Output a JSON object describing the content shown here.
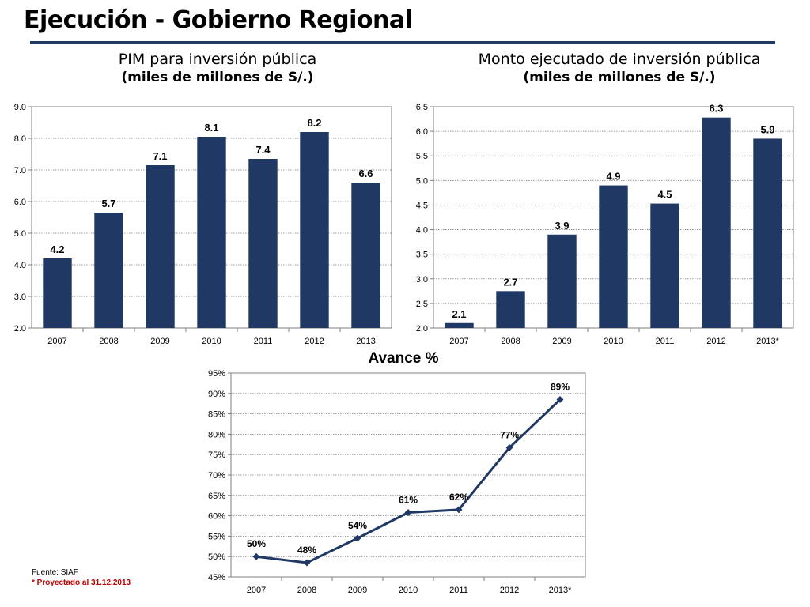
{
  "header": {
    "title": "Ejecución - Gobierno Regional"
  },
  "footer": {
    "source": "Fuente: SIAF",
    "projected_note": "* Proyectado al 31.12.2013"
  },
  "chart_data": [
    {
      "type": "bar",
      "title": "PIM para inversión pública",
      "subtitle": "(miles de millones de S/.)",
      "categories": [
        "2007",
        "2008",
        "2009",
        "2010",
        "2011",
        "2012",
        "2013"
      ],
      "values": [
        4.2,
        5.65,
        7.15,
        8.05,
        7.35,
        8.2,
        6.6
      ],
      "data_labels": [
        "4.2",
        "5.7",
        "7.1",
        "8.1",
        "7.4",
        "8.2",
        "6.6"
      ],
      "ylim": [
        2.0,
        9.0
      ],
      "yticks": [
        "2.0",
        "3.0",
        "4.0",
        "5.0",
        "6.0",
        "7.0",
        "8.0",
        "9.0"
      ],
      "grid": true,
      "bar_color": "#1f3864"
    },
    {
      "type": "bar",
      "title": "Monto ejecutado de inversión pública",
      "subtitle": "(miles de millones de S/.)",
      "categories": [
        "2007",
        "2008",
        "2009",
        "2010",
        "2011",
        "2012",
        "2013*"
      ],
      "values": [
        2.1,
        2.75,
        3.9,
        4.9,
        4.53,
        6.28,
        5.85
      ],
      "data_labels": [
        "2.1",
        "2.7",
        "3.9",
        "4.9",
        "4.5",
        "6.3",
        "5.9"
      ],
      "ylim": [
        2.0,
        6.5
      ],
      "yticks": [
        "2.0",
        "2.5",
        "3.0",
        "3.5",
        "4.0",
        "4.5",
        "5.0",
        "5.5",
        "6.0",
        "6.5"
      ],
      "grid": true,
      "bar_color": "#1f3864"
    },
    {
      "type": "line",
      "title": "Avance %",
      "categories": [
        "2007",
        "2008",
        "2009",
        "2010",
        "2011",
        "2012",
        "2013*"
      ],
      "values": [
        50,
        48.5,
        54.5,
        60.8,
        61.5,
        76.7,
        88.5
      ],
      "data_labels": [
        "50%",
        "48%",
        "54%",
        "61%",
        "62%",
        "77%",
        "89%"
      ],
      "ylim": [
        45,
        95
      ],
      "yticks": [
        "45%",
        "50%",
        "55%",
        "60%",
        "65%",
        "70%",
        "75%",
        "80%",
        "85%",
        "90%",
        "95%"
      ],
      "grid": true,
      "line_color": "#1f3864"
    }
  ]
}
